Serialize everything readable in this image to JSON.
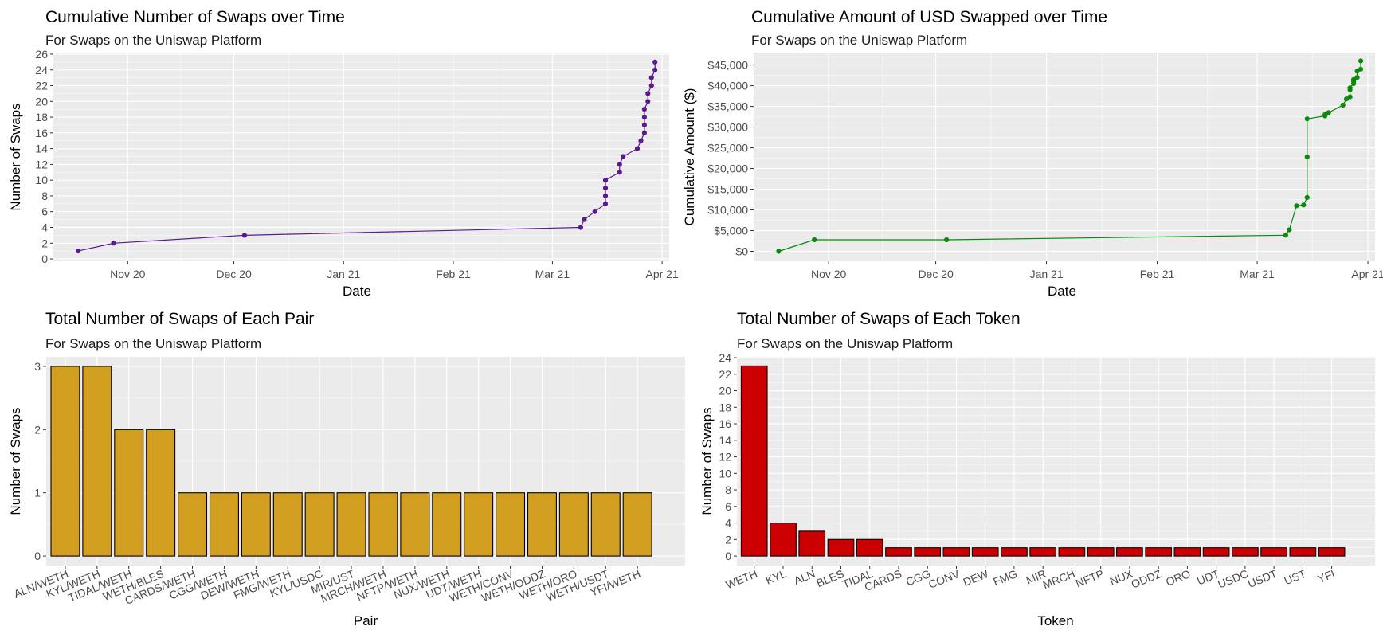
{
  "colors": {
    "panel_bg": "#EBEBEB",
    "grid": "#FFFFFF",
    "tick_text": "#4D4D4D",
    "swaps_line": "#5B1A8E",
    "usd_line": "#0A8A0A",
    "pair_bar": "#D19E1F",
    "token_bar": "#CC0000",
    "bar_outline": "#000000"
  },
  "chart_data": [
    {
      "type": "line",
      "title": "Cumulative Number of Swaps over Time",
      "subtitle": "For Swaps on the Uniswap Platform",
      "xlabel": "Date",
      "ylabel": "Number of Swaps",
      "x_type": "date",
      "x_range": [
        "2020-10-11",
        "2021-04-03"
      ],
      "x_ticks": [
        {
          "date": "2020-11-01",
          "label": "Nov 20"
        },
        {
          "date": "2020-12-01",
          "label": "Dec 20"
        },
        {
          "date": "2021-01-01",
          "label": "Jan 21"
        },
        {
          "date": "2021-02-01",
          "label": "Feb 21"
        },
        {
          "date": "2021-03-01",
          "label": "Mar 21"
        },
        {
          "date": "2021-04-01",
          "label": "Apr 21"
        }
      ],
      "ylim": [
        -0.3,
        26.2
      ],
      "y_ticks": [
        0,
        2,
        4,
        6,
        8,
        10,
        12,
        14,
        16,
        18,
        20,
        22,
        24,
        26
      ],
      "y_tick_labels": [
        "0",
        "2",
        "4",
        "6",
        "8",
        "10",
        "12",
        "14",
        "16",
        "18",
        "20",
        "22",
        "24",
        "26"
      ],
      "grid": true,
      "series": [
        {
          "color": "#5B1A8E",
          "points": [
            {
              "x": "2020-10-18",
              "y": 1
            },
            {
              "x": "2020-10-28",
              "y": 2
            },
            {
              "x": "2020-12-04",
              "y": 3
            },
            {
              "x": "2021-03-09",
              "y": 4
            },
            {
              "x": "2021-03-10",
              "y": 5
            },
            {
              "x": "2021-03-13",
              "y": 6
            },
            {
              "x": "2021-03-16",
              "y": 7
            },
            {
              "x": "2021-03-16",
              "y": 8
            },
            {
              "x": "2021-03-16",
              "y": 9
            },
            {
              "x": "2021-03-16",
              "y": 10
            },
            {
              "x": "2021-03-20",
              "y": 11
            },
            {
              "x": "2021-03-20",
              "y": 12
            },
            {
              "x": "2021-03-21",
              "y": 13
            },
            {
              "x": "2021-03-25",
              "y": 14
            },
            {
              "x": "2021-03-26",
              "y": 15
            },
            {
              "x": "2021-03-27",
              "y": 16
            },
            {
              "x": "2021-03-27",
              "y": 17
            },
            {
              "x": "2021-03-27",
              "y": 18
            },
            {
              "x": "2021-03-27",
              "y": 19
            },
            {
              "x": "2021-03-28",
              "y": 20
            },
            {
              "x": "2021-03-28",
              "y": 21
            },
            {
              "x": "2021-03-29",
              "y": 22
            },
            {
              "x": "2021-03-29",
              "y": 23
            },
            {
              "x": "2021-03-30",
              "y": 24
            },
            {
              "x": "2021-03-30",
              "y": 25
            }
          ]
        }
      ]
    },
    {
      "type": "line",
      "title": "Cumulative Amount of USD Swapped over Time",
      "subtitle": "For Swaps on the Uniswap Platform",
      "xlabel": "Date",
      "ylabel": "Cumulative Amount ($)",
      "x_type": "date",
      "x_range": [
        "2020-10-11",
        "2021-04-03"
      ],
      "x_ticks": [
        {
          "date": "2020-11-01",
          "label": "Nov 20"
        },
        {
          "date": "2020-12-01",
          "label": "Dec 20"
        },
        {
          "date": "2021-01-01",
          "label": "Jan 21"
        },
        {
          "date": "2021-02-01",
          "label": "Feb 21"
        },
        {
          "date": "2021-03-01",
          "label": "Mar 21"
        },
        {
          "date": "2021-04-01",
          "label": "Apr 21"
        }
      ],
      "ylim": [
        -2400,
        48000
      ],
      "y_ticks": [
        0,
        5000,
        10000,
        15000,
        20000,
        25000,
        30000,
        35000,
        40000,
        45000
      ],
      "y_tick_labels": [
        "$0",
        "$5,000",
        "$10,000",
        "$15,000",
        "$20,000",
        "$25,000",
        "$30,000",
        "$35,000",
        "$40,000",
        "$45,000"
      ],
      "grid": true,
      "series": [
        {
          "color": "#0A8A0A",
          "points": [
            {
              "x": "2020-10-18",
              "y": 0
            },
            {
              "x": "2020-10-28",
              "y": 2800
            },
            {
              "x": "2020-12-04",
              "y": 2800
            },
            {
              "x": "2021-03-09",
              "y": 3900
            },
            {
              "x": "2021-03-10",
              "y": 5200
            },
            {
              "x": "2021-03-12",
              "y": 11000
            },
            {
              "x": "2021-03-14",
              "y": 11200
            },
            {
              "x": "2021-03-15",
              "y": 13000
            },
            {
              "x": "2021-03-15",
              "y": 22800
            },
            {
              "x": "2021-03-15",
              "y": 32000
            },
            {
              "x": "2021-03-20",
              "y": 32700
            },
            {
              "x": "2021-03-20",
              "y": 33000
            },
            {
              "x": "2021-03-21",
              "y": 33500
            },
            {
              "x": "2021-03-25",
              "y": 35300
            },
            {
              "x": "2021-03-26",
              "y": 36800
            },
            {
              "x": "2021-03-27",
              "y": 37300
            },
            {
              "x": "2021-03-27",
              "y": 39000
            },
            {
              "x": "2021-03-27",
              "y": 39500
            },
            {
              "x": "2021-03-28",
              "y": 40500
            },
            {
              "x": "2021-03-28",
              "y": 41000
            },
            {
              "x": "2021-03-28",
              "y": 41500
            },
            {
              "x": "2021-03-29",
              "y": 42000
            },
            {
              "x": "2021-03-29",
              "y": 43500
            },
            {
              "x": "2021-03-30",
              "y": 44000
            },
            {
              "x": "2021-03-30",
              "y": 46000
            }
          ]
        }
      ]
    },
    {
      "type": "bar",
      "title": "Total Number of Swaps of Each Pair",
      "subtitle": "For Swaps on the Uniswap Platform",
      "xlabel": "Pair",
      "ylabel": "Number of Swaps",
      "categories": [
        "ALN/WETH",
        "KYL/WETH",
        "TIDAL/WETH",
        "WETH/BLES",
        "CARDS/WETH",
        "CGG/WETH",
        "DEW/WETH",
        "FMG/WETH",
        "KYL/USDC",
        "MIR/UST",
        "MRCH/WETH",
        "NFTP/WETH",
        "NUX/WETH",
        "UDT/WETH",
        "WETH/CONV",
        "WETH/ODDZ",
        "WETH/ORO",
        "WETH/USDT",
        "YFI/WETH"
      ],
      "values": [
        3,
        3,
        2,
        2,
        1,
        1,
        1,
        1,
        1,
        1,
        1,
        1,
        1,
        1,
        1,
        1,
        1,
        1,
        1
      ],
      "ylim": [
        -0.15,
        3.15
      ],
      "y_ticks": [
        0,
        1,
        2,
        3
      ],
      "y_tick_labels": [
        "0",
        "1",
        "2",
        "3"
      ],
      "grid": true,
      "bar_color": "#D19E1F"
    },
    {
      "type": "bar",
      "title": "Total Number of Swaps of Each Token",
      "subtitle": "For Swaps on the Uniswap Platform",
      "xlabel": "Token",
      "ylabel": "Number of Swaps",
      "categories": [
        "WETH",
        "KYL",
        "ALN",
        "BLES",
        "TIDAL",
        "CARDS",
        "CGG",
        "CONV",
        "DEW",
        "FMG",
        "MIR",
        "MRCH",
        "NFTP",
        "NUX",
        "ODDZ",
        "ORO",
        "UDT",
        "USDC",
        "USDT",
        "UST",
        "YFI"
      ],
      "values": [
        23,
        4,
        3,
        2,
        2,
        1,
        1,
        1,
        1,
        1,
        1,
        1,
        1,
        1,
        1,
        1,
        1,
        1,
        1,
        1,
        1
      ],
      "ylim": [
        -1.15,
        24.1
      ],
      "y_ticks": [
        0,
        2,
        4,
        6,
        8,
        10,
        12,
        14,
        16,
        18,
        20,
        22,
        24
      ],
      "y_tick_labels": [
        "0",
        "2",
        "4",
        "6",
        "8",
        "10",
        "12",
        "14",
        "16",
        "18",
        "20",
        "22",
        "24"
      ],
      "grid": true,
      "bar_color": "#CC0000"
    }
  ]
}
